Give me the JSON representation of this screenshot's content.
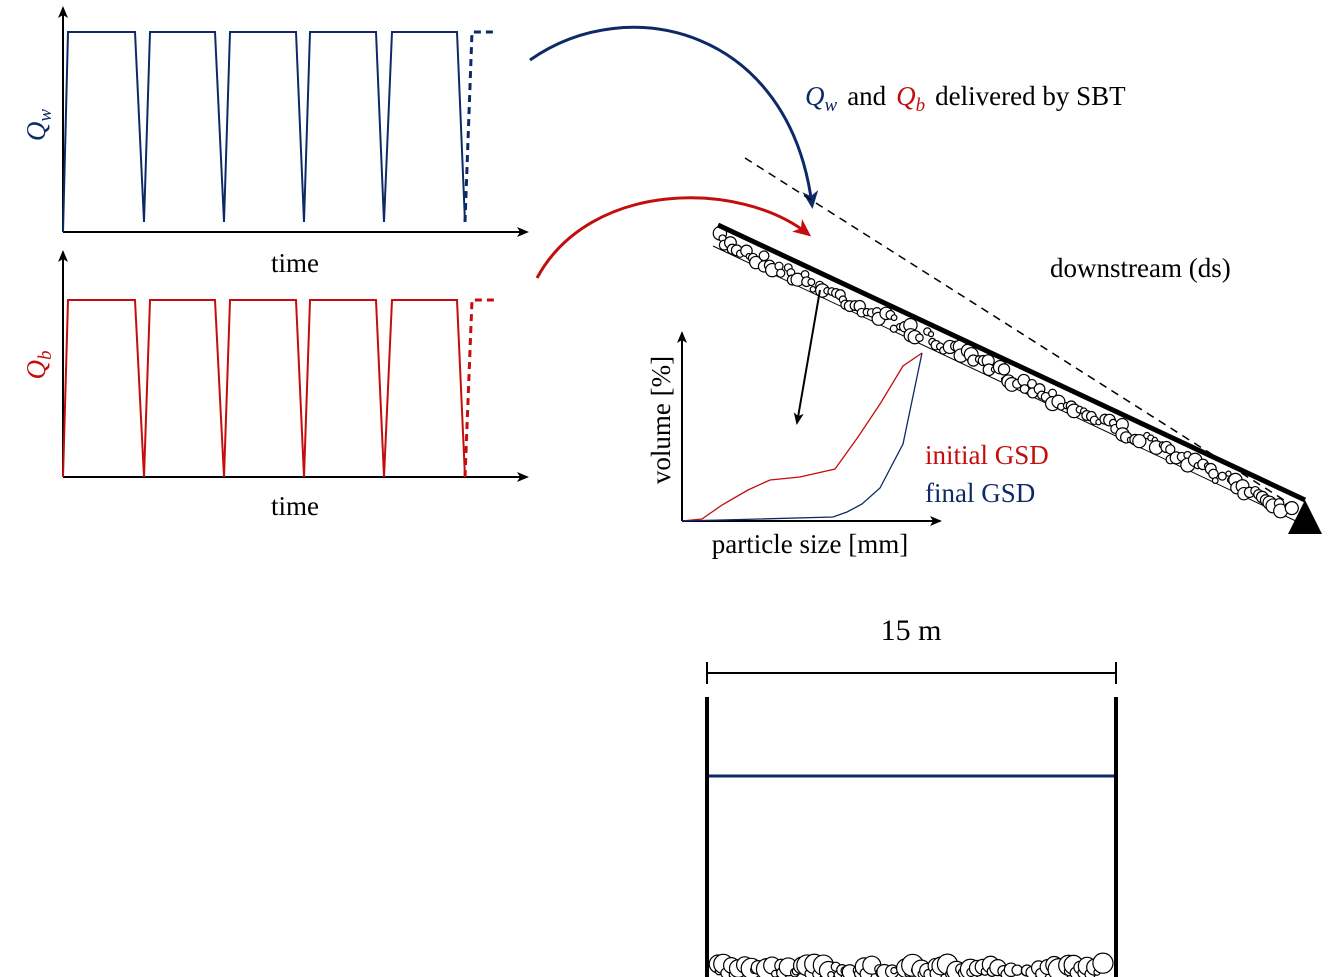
{
  "panels": {
    "discharge": {
      "label": {
        "symbol": "Q",
        "subscript": "w"
      },
      "x_label": "time"
    },
    "sediment": {
      "label": {
        "symbol": "Q",
        "subscript": "b"
      },
      "x_label": "time"
    }
  },
  "caption": {
    "first": {
      "symbol": "Q",
      "subscript": "w"
    },
    "joiner": "and",
    "second": {
      "symbol": "Q",
      "subscript": "b"
    },
    "rest": "delivered by SBT"
  },
  "flume": {
    "direction": "downstream (ds)",
    "inset": {
      "y_label": "volume [%]",
      "x_label": "particle size [mm]",
      "legend": [
        "initial GSD",
        "final GSD"
      ]
    },
    "cross_section": {
      "width": "15 m"
    }
  }
}
